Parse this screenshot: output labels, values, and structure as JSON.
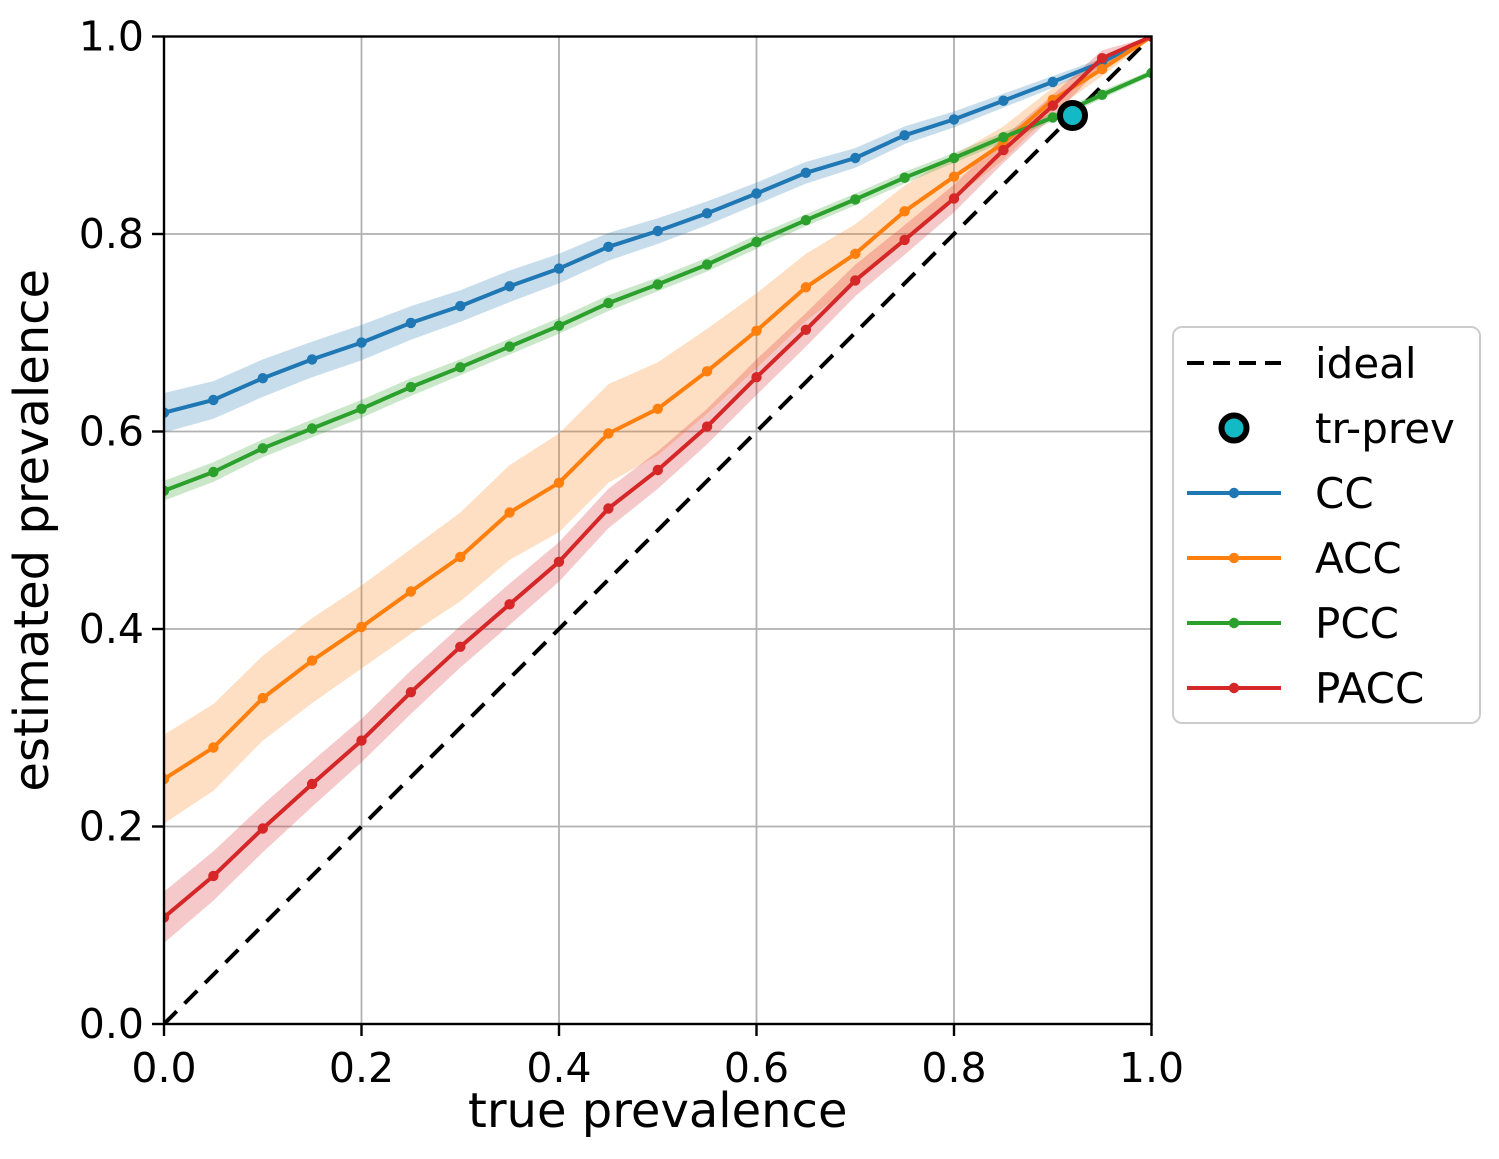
{
  "chart_data": {
    "type": "line",
    "title": "",
    "xlabel": "true prevalence",
    "ylabel": "estimated prevalence",
    "xlim": [
      0.0,
      1.0
    ],
    "ylim": [
      0.0,
      1.0
    ],
    "grid": true,
    "grid_color": "#b0b0b0",
    "spine_color": "#000000",
    "background_color": "#ffffff",
    "xticks": [
      0.0,
      0.2,
      0.4,
      0.6,
      0.8,
      1.0
    ],
    "xtick_labels": [
      "0.0",
      "0.2",
      "0.4",
      "0.6",
      "0.8",
      "1.0"
    ],
    "yticks": [
      0.0,
      0.2,
      0.4,
      0.6,
      0.8,
      1.0
    ],
    "ytick_labels": [
      "0.0",
      "0.2",
      "0.4",
      "0.6",
      "0.8",
      "1.0"
    ],
    "x": [
      0.0,
      0.05,
      0.1,
      0.15,
      0.2,
      0.25,
      0.3,
      0.35,
      0.4,
      0.45,
      0.5,
      0.55,
      0.6,
      0.65,
      0.7,
      0.75,
      0.8,
      0.85,
      0.9,
      0.95,
      1.0
    ],
    "series": [
      {
        "name": "CC",
        "color": "#1f77b4",
        "values": [
          0.619,
          0.632,
          0.654,
          0.673,
          0.69,
          0.71,
          0.727,
          0.747,
          0.765,
          0.787,
          0.803,
          0.821,
          0.841,
          0.862,
          0.877,
          0.9,
          0.916,
          0.935,
          0.954,
          0.974,
          1.0
        ],
        "band_halfwidth": [
          0.02,
          0.019,
          0.019,
          0.018,
          0.018,
          0.017,
          0.016,
          0.016,
          0.015,
          0.014,
          0.013,
          0.012,
          0.011,
          0.011,
          0.01,
          0.009,
          0.008,
          0.007,
          0.006,
          0.004,
          0.002
        ]
      },
      {
        "name": "ACC",
        "color": "#ff7f0e",
        "values": [
          0.248,
          0.28,
          0.33,
          0.368,
          0.402,
          0.438,
          0.473,
          0.518,
          0.548,
          0.598,
          0.623,
          0.661,
          0.702,
          0.746,
          0.78,
          0.823,
          0.858,
          0.892,
          0.936,
          0.967,
          1.0
        ],
        "band_halfwidth": [
          0.045,
          0.044,
          0.043,
          0.043,
          0.042,
          0.043,
          0.045,
          0.048,
          0.05,
          0.05,
          0.047,
          0.043,
          0.038,
          0.034,
          0.03,
          0.026,
          0.022,
          0.017,
          0.012,
          0.007,
          0.002
        ]
      },
      {
        "name": "PCC",
        "color": "#2ca02c",
        "values": [
          0.54,
          0.559,
          0.583,
          0.603,
          0.623,
          0.645,
          0.665,
          0.686,
          0.707,
          0.73,
          0.749,
          0.769,
          0.792,
          0.814,
          0.835,
          0.857,
          0.877,
          0.898,
          0.918,
          0.941,
          0.963
        ],
        "band_halfwidth": [
          0.01,
          0.01,
          0.009,
          0.009,
          0.009,
          0.009,
          0.008,
          0.008,
          0.008,
          0.008,
          0.007,
          0.007,
          0.007,
          0.006,
          0.006,
          0.006,
          0.005,
          0.005,
          0.004,
          0.004,
          0.003
        ]
      },
      {
        "name": "PACC",
        "color": "#d62728",
        "values": [
          0.108,
          0.15,
          0.198,
          0.243,
          0.287,
          0.336,
          0.382,
          0.425,
          0.468,
          0.522,
          0.561,
          0.605,
          0.655,
          0.703,
          0.753,
          0.794,
          0.836,
          0.885,
          0.93,
          0.978,
          1.0
        ],
        "band_halfwidth": [
          0.026,
          0.025,
          0.024,
          0.023,
          0.022,
          0.022,
          0.021,
          0.021,
          0.02,
          0.02,
          0.019,
          0.018,
          0.018,
          0.017,
          0.016,
          0.015,
          0.014,
          0.013,
          0.011,
          0.008,
          0.002
        ]
      }
    ],
    "band_alpha": 0.25,
    "ideal": {
      "label": "ideal",
      "from": [
        0.0,
        0.0
      ],
      "to": [
        1.0,
        1.0
      ],
      "style": "dashed",
      "color": "#000000"
    },
    "tr_prev": {
      "label": "tr-prev",
      "x": 0.92,
      "y": 0.92,
      "fill_color": "#13b9c4",
      "edge_color": "#000000"
    },
    "legend": {
      "position": "right",
      "entries": [
        "ideal",
        "tr-prev",
        "CC",
        "ACC",
        "PCC",
        "PACC"
      ]
    }
  }
}
